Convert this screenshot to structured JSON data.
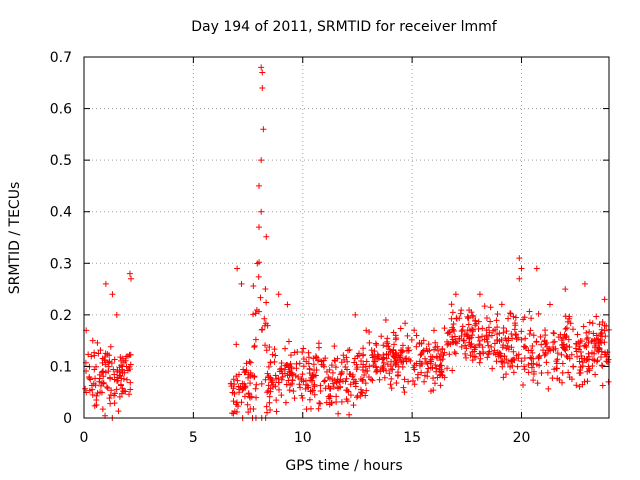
{
  "chart_data": {
    "type": "scatter",
    "title": "Day 194 of 2011, SRMTID for receiver lmmf",
    "xlabel": "GPS time / hours",
    "ylabel": "SRMTID / TECUs",
    "xlim": [
      0,
      24
    ],
    "ylim": [
      0,
      0.7
    ],
    "xticks": [
      0,
      5,
      10,
      15,
      20
    ],
    "xtick_labels": [
      "0",
      "5",
      "10",
      "15",
      "20"
    ],
    "yticks": [
      0,
      0.1,
      0.2,
      0.3,
      0.4,
      0.5,
      0.6,
      0.7
    ],
    "ytick_labels": [
      "0",
      "0.1",
      "0.2",
      "0.3",
      "0.4",
      "0.5",
      "0.6",
      "0.7"
    ],
    "grid": true,
    "marker": "+",
    "colors": {
      "marker": "#ff0000",
      "grid": "#a0a0a0",
      "axes": "#000000"
    },
    "series": [
      {
        "name": "SRMTID",
        "segments": [
          {
            "x_range": [
              0.0,
              2.2
            ],
            "base": 0.08,
            "spread": 0.09,
            "peaks": [
              [
                0.1,
                0.17
              ],
              [
                0.4,
                0.15
              ],
              [
                1.0,
                0.26
              ],
              [
                1.3,
                0.24
              ],
              [
                1.5,
                0.2
              ],
              [
                2.1,
                0.28
              ],
              [
                2.15,
                0.27
              ]
            ]
          },
          {
            "x_range": [
              6.7,
              7.7
            ],
            "base": 0.06,
            "spread": 0.1,
            "peaks": [
              [
                7.0,
                0.29
              ],
              [
                7.2,
                0.26
              ]
            ]
          },
          {
            "x_range": [
              7.7,
              8.4
            ],
            "base": 0.15,
            "spread": 0.3,
            "peaks": [
              [
                8.1,
                0.68
              ],
              [
                8.15,
                0.67
              ],
              [
                8.15,
                0.64
              ],
              [
                8.2,
                0.56
              ],
              [
                8.1,
                0.5
              ],
              [
                8.0,
                0.45
              ],
              [
                8.1,
                0.4
              ],
              [
                8.0,
                0.37
              ]
            ]
          },
          {
            "x_range": [
              8.4,
              10.0
            ],
            "base": 0.08,
            "spread": 0.08,
            "peaks": [
              [
                8.9,
                0.24
              ],
              [
                9.3,
                0.22
              ]
            ]
          },
          {
            "x_range": [
              10.0,
              13.0
            ],
            "base": 0.08,
            "spread": 0.08,
            "peaks": [
              [
                12.4,
                0.2
              ],
              [
                12.9,
                0.17
              ]
            ]
          },
          {
            "x_range": [
              13.0,
              16.5
            ],
            "base": 0.11,
            "spread": 0.08,
            "peaks": [
              [
                13.8,
                0.19
              ],
              [
                15.2,
                0.16
              ],
              [
                16.0,
                0.17
              ]
            ]
          },
          {
            "x_range": [
              16.5,
              18.5
            ],
            "base": 0.16,
            "spread": 0.09,
            "peaks": [
              [
                17.0,
                0.24
              ],
              [
                18.1,
                0.24
              ]
            ]
          },
          {
            "x_range": [
              18.5,
              20.2
            ],
            "base": 0.14,
            "spread": 0.09,
            "peaks": [
              [
                19.9,
                0.31
              ],
              [
                20.0,
                0.29
              ],
              [
                19.9,
                0.27
              ]
            ]
          },
          {
            "x_range": [
              20.2,
              24.0
            ],
            "base": 0.13,
            "spread": 0.09,
            "peaks": [
              [
                20.7,
                0.29
              ],
              [
                21.3,
                0.22
              ],
              [
                22.0,
                0.25
              ],
              [
                22.9,
                0.26
              ],
              [
                23.8,
                0.23
              ]
            ]
          }
        ]
      }
    ]
  }
}
